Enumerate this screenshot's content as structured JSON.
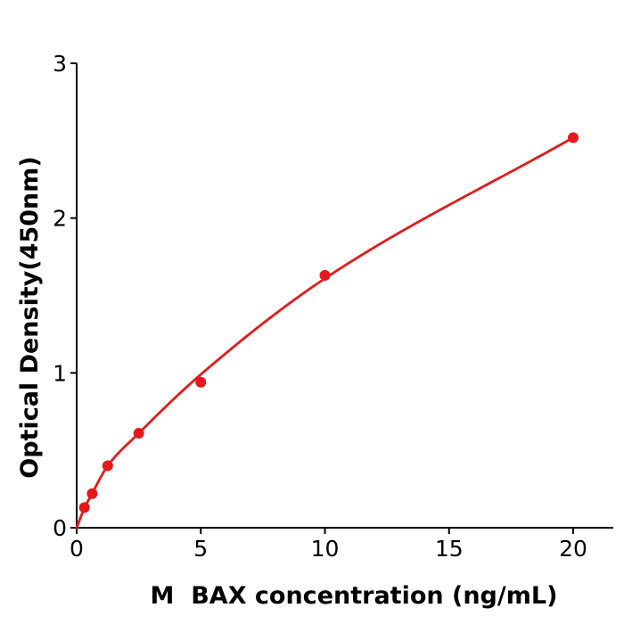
{
  "chart_data": {
    "type": "scatter",
    "title": "",
    "xlabel": "M  BAX concentration (ng/mL)",
    "ylabel": "Optical Density(450nm)",
    "x": [
      0.313,
      0.625,
      1.25,
      2.5,
      5,
      10,
      20
    ],
    "y": [
      0.13,
      0.22,
      0.4,
      0.61,
      0.94,
      1.63,
      2.52
    ],
    "fit_curve": {
      "x": [
        0,
        0.313,
        0.625,
        1.25,
        2.5,
        5,
        10,
        20
      ],
      "y": [
        0,
        0.127,
        0.222,
        0.4,
        0.61,
        0.99,
        1.61,
        2.52
      ]
    },
    "xticks": [
      0,
      5,
      10,
      15,
      20
    ],
    "yticks": [
      0,
      1,
      2,
      3
    ],
    "xlim": [
      0,
      21.6
    ],
    "ylim": [
      0,
      3
    ],
    "grid": false,
    "legend": "none",
    "point_color": "#e31a1c",
    "line_color": "#e31a1c",
    "axis_color": "#000000",
    "background_color": "#ffffff"
  }
}
